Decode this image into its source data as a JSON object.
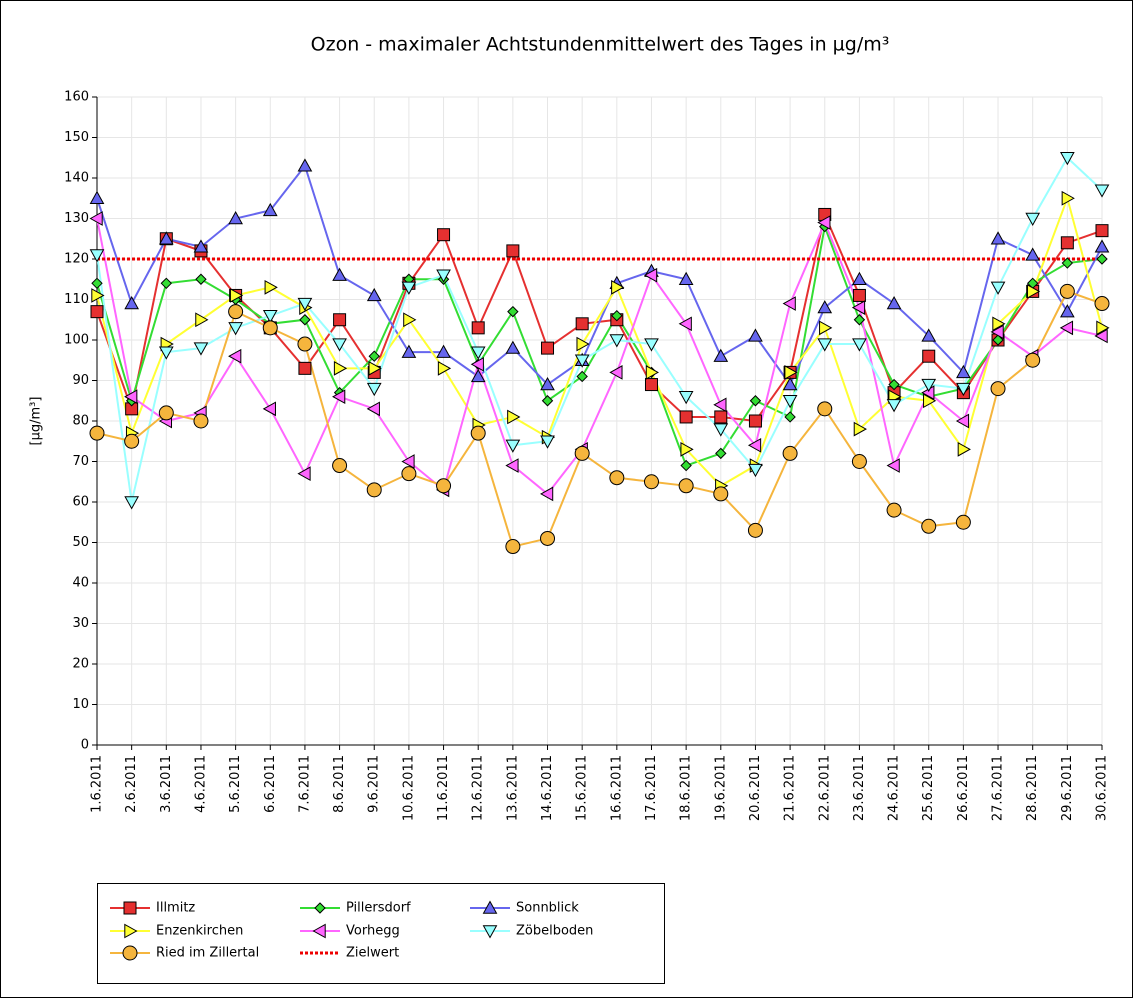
{
  "chart_data": {
    "type": "line",
    "title": "Ozon -  maximaler Achtstundenmittelwert des Tages in µg/m³",
    "y_label": "[µg/m³]",
    "categories": [
      "1.6.2011",
      "2.6.2011",
      "3.6.2011",
      "4.6.2011",
      "5.6.2011",
      "6.6.2011",
      "7.6.2011",
      "8.6.2011",
      "9.6.2011",
      "10.6.2011",
      "11.6.2011",
      "12.6.2011",
      "13.6.2011",
      "14.6.2011",
      "15.6.2011",
      "16.6.2011",
      "17.6.2011",
      "18.6.2011",
      "19.6.2011",
      "20.6.2011",
      "21.6.2011",
      "22.6.2011",
      "23.6.2011",
      "24.6.2011",
      "25.6.2011",
      "26.6.2011",
      "27.6.2011",
      "28.6.2011",
      "29.6.2011",
      "30.6.2011"
    ],
    "series": [
      {
        "name": "Illmitz",
        "color": "#e53030",
        "marker": "square",
        "values": [
          107,
          83,
          125,
          122,
          111,
          103,
          93,
          105,
          92,
          114,
          126,
          103,
          122,
          98,
          104,
          105,
          89,
          81,
          81,
          80,
          92,
          131,
          111,
          87,
          96,
          87,
          100,
          112,
          124,
          127
        ]
      },
      {
        "name": "Pillersdorf",
        "color": "#33dd33",
        "marker": "diamond",
        "values": [
          114,
          85,
          114,
          115,
          110,
          104,
          105,
          87,
          96,
          115,
          115,
          94,
          107,
          85,
          91,
          106,
          92,
          69,
          72,
          85,
          81,
          128,
          105,
          89,
          86,
          88,
          100,
          114,
          119,
          120
        ]
      },
      {
        "name": "Sonnblick",
        "color": "#6666ee",
        "marker": "up",
        "values": [
          135,
          109,
          125,
          123,
          130,
          132,
          143,
          116,
          111,
          97,
          97,
          91,
          98,
          89,
          95,
          114,
          117,
          115,
          96,
          101,
          89,
          108,
          115,
          109,
          101,
          92,
          125,
          121,
          107,
          123
        ]
      },
      {
        "name": "Enzenkirchen",
        "color": "#ffff33",
        "marker": "right",
        "values": [
          111,
          77,
          99,
          105,
          111,
          113,
          108,
          93,
          93,
          105,
          93,
          79,
          81,
          76,
          99,
          113,
          92,
          73,
          64,
          69,
          92,
          103,
          78,
          86,
          85,
          73,
          104,
          112,
          135,
          103
        ]
      },
      {
        "name": "Vorhegg",
        "color": "#ff66ff",
        "marker": "left",
        "values": [
          130,
          86,
          80,
          82,
          96,
          83,
          67,
          86,
          83,
          70,
          63,
          94,
          69,
          62,
          73,
          92,
          116,
          104,
          84,
          74,
          109,
          129,
          108,
          69,
          87,
          80,
          102,
          96,
          103,
          101
        ]
      },
      {
        "name": "Zöbelboden",
        "color": "#99ffff",
        "marker": "down",
        "values": [
          121,
          60,
          97,
          98,
          103,
          106,
          109,
          99,
          88,
          113,
          116,
          97,
          74,
          75,
          95,
          100,
          99,
          86,
          78,
          68,
          85,
          99,
          99,
          84,
          89,
          88,
          113,
          130,
          145,
          137
        ]
      },
      {
        "name": "Ried im Zillertal",
        "color": "#f5b53d",
        "marker": "circle",
        "values": [
          77,
          75,
          82,
          80,
          107,
          103,
          99,
          69,
          63,
          67,
          64,
          77,
          49,
          51,
          72,
          66,
          65,
          64,
          62,
          53,
          72,
          83,
          70,
          58,
          54,
          55,
          88,
          95,
          112,
          109
        ]
      }
    ],
    "target": {
      "name": "Zielwert",
      "value": 120,
      "color": "#ee0000"
    },
    "ylim": [
      0,
      160
    ],
    "yticks": [
      0,
      10,
      20,
      30,
      40,
      50,
      60,
      70,
      80,
      90,
      100,
      110,
      120,
      130,
      140,
      150,
      160
    ],
    "grid": true
  }
}
